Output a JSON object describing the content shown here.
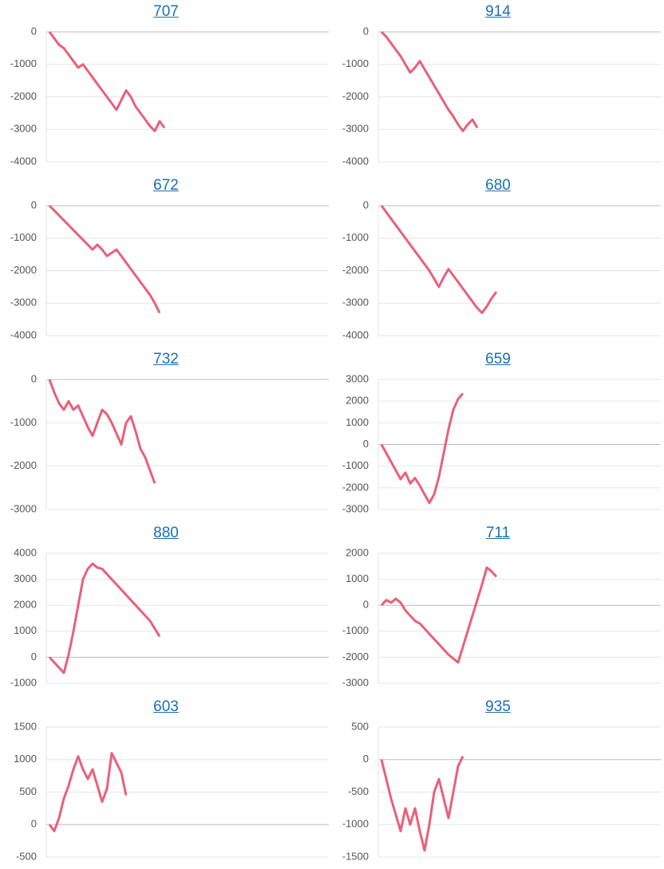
{
  "chart_data": [
    {
      "type": "line",
      "title": "707",
      "color": "#e9607a",
      "grid": true,
      "ylim": [
        -4000,
        0
      ],
      "yticks": [
        -4000,
        -3000,
        -2000,
        -1000,
        0
      ],
      "values": [
        0,
        -200,
        -400,
        -500,
        -700,
        -900,
        -1100,
        -1000,
        -1200,
        -1400,
        -1600,
        -1800,
        -2000,
        -2200,
        -2400,
        -2100,
        -1800,
        -2000,
        -2300,
        -2500,
        -2700,
        -2900,
        -3050,
        -2750,
        -2950
      ]
    },
    {
      "type": "line",
      "title": "914",
      "color": "#e9607a",
      "grid": true,
      "ylim": [
        -4000,
        0
      ],
      "yticks": [
        -4000,
        -3000,
        -2000,
        -1000,
        0
      ],
      "values": [
        0,
        -150,
        -350,
        -550,
        -750,
        -1000,
        -1250,
        -1100,
        -900,
        -1150,
        -1400,
        -1650,
        -1900,
        -2150,
        -2400,
        -2600,
        -2850,
        -3050,
        -2850,
        -2700,
        -2950
      ]
    },
    {
      "type": "line",
      "title": "672",
      "color": "#e9607a",
      "grid": true,
      "ylim": [
        -4000,
        0
      ],
      "yticks": [
        -4000,
        -3000,
        -2000,
        -1000,
        0
      ],
      "values": [
        0,
        -150,
        -300,
        -450,
        -600,
        -750,
        -900,
        -1050,
        -1200,
        -1350,
        -1200,
        -1350,
        -1550,
        -1450,
        -1350,
        -1550,
        -1750,
        -1950,
        -2150,
        -2350,
        -2550,
        -2750,
        -3000,
        -3300
      ]
    },
    {
      "type": "line",
      "title": "680",
      "color": "#e9607a",
      "grid": true,
      "ylim": [
        -4000,
        0
      ],
      "yticks": [
        -4000,
        -3000,
        -2000,
        -1000,
        0
      ],
      "values": [
        0,
        -200,
        -400,
        -600,
        -800,
        -1000,
        -1200,
        -1400,
        -1600,
        -1800,
        -2000,
        -2250,
        -2500,
        -2200,
        -1950,
        -2150,
        -2350,
        -2550,
        -2750,
        -2950,
        -3150,
        -3300,
        -3100,
        -2850,
        -2650
      ]
    },
    {
      "type": "line",
      "title": "732",
      "color": "#e9607a",
      "grid": true,
      "ylim": [
        -3000,
        0
      ],
      "yticks": [
        -3000,
        -2000,
        -1000,
        0
      ],
      "values": [
        0,
        -300,
        -550,
        -700,
        -500,
        -700,
        -600,
        -850,
        -1100,
        -1300,
        -1000,
        -700,
        -800,
        -1000,
        -1250,
        -1500,
        -1000,
        -850,
        -1200,
        -1600,
        -1800,
        -2100,
        -2400
      ]
    },
    {
      "type": "line",
      "title": "659",
      "color": "#e9607a",
      "grid": true,
      "ylim": [
        -3000,
        3000
      ],
      "yticks": [
        -3000,
        -2000,
        -1000,
        0,
        1000,
        2000,
        3000
      ],
      "values": [
        0,
        -400,
        -800,
        -1200,
        -1600,
        -1300,
        -1800,
        -1550,
        -1900,
        -2300,
        -2700,
        -2300,
        -1500,
        -400,
        700,
        1600,
        2100,
        2350
      ]
    },
    {
      "type": "line",
      "title": "880",
      "color": "#e9607a",
      "grid": true,
      "ylim": [
        -1000,
        4000
      ],
      "yticks": [
        -1000,
        0,
        1000,
        2000,
        3000,
        4000
      ],
      "values": [
        0,
        -200,
        -400,
        -600,
        100,
        1000,
        2000,
        3000,
        3400,
        3600,
        3450,
        3400,
        3200,
        3000,
        2800,
        2600,
        2400,
        2200,
        2000,
        1800,
        1600,
        1400,
        1100,
        800
      ]
    },
    {
      "type": "line",
      "title": "711",
      "color": "#e9607a",
      "grid": true,
      "ylim": [
        -3000,
        2000
      ],
      "yticks": [
        -3000,
        -2000,
        -1000,
        0,
        1000,
        2000
      ],
      "values": [
        0,
        200,
        100,
        250,
        100,
        -200,
        -400,
        -600,
        -700,
        -900,
        -1100,
        -1300,
        -1500,
        -1700,
        -1900,
        -2050,
        -2200,
        -1600,
        -1000,
        -400,
        200,
        800,
        1450,
        1300,
        1100
      ]
    },
    {
      "type": "line",
      "title": "603",
      "color": "#e9607a",
      "grid": true,
      "ylim": [
        -500,
        1500
      ],
      "yticks": [
        -500,
        0,
        500,
        1000,
        1500
      ],
      "values": [
        0,
        -100,
        100,
        400,
        600,
        850,
        1050,
        850,
        700,
        850,
        600,
        350,
        550,
        1100,
        950,
        800,
        450
      ]
    },
    {
      "type": "line",
      "title": "935",
      "color": "#e9607a",
      "grid": true,
      "ylim": [
        -1500,
        500
      ],
      "yticks": [
        -1500,
        -1000,
        -500,
        0,
        500
      ],
      "values": [
        0,
        -300,
        -600,
        -850,
        -1100,
        -750,
        -1000,
        -750,
        -1100,
        -1400,
        -1000,
        -500,
        -300,
        -600,
        -900,
        -500,
        -100,
        50
      ]
    }
  ]
}
